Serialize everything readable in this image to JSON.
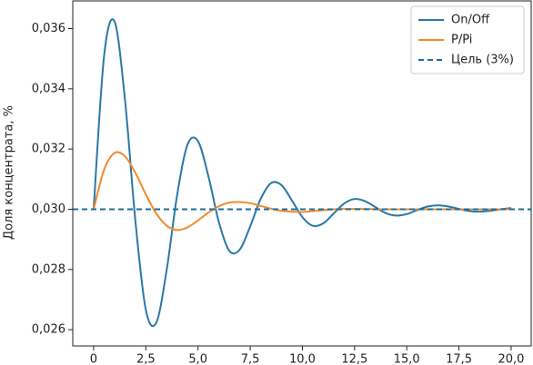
{
  "chart_data": {
    "type": "line",
    "y_label": "Доля концентрата, %",
    "x": [
      0,
      0.5,
      1,
      1.5,
      2,
      2.5,
      3,
      3.5,
      4,
      4.5,
      5,
      5.5,
      6,
      6.5,
      7,
      7.5,
      8,
      8.5,
      9,
      9.5,
      10,
      10.5,
      11,
      11.5,
      12,
      12.5,
      13,
      13.5,
      14,
      14.5,
      15,
      15.5,
      16,
      16.5,
      17,
      17.5,
      18,
      18.5,
      19,
      19.5,
      20
    ],
    "series": [
      {
        "name": "On/Off",
        "color": "#2a78a8",
        "values": [
          0.03,
          0.03509,
          0.03624,
          0.03365,
          0.02961,
          0.02666,
          0.02623,
          0.02799,
          0.03047,
          0.03215,
          0.03226,
          0.03109,
          0.02957,
          0.02862,
          0.02866,
          0.02943,
          0.03034,
          0.03087,
          0.0308,
          0.03029,
          0.02974,
          0.02945,
          0.02953,
          0.02986,
          0.03019,
          0.03034,
          0.03027,
          0.03007,
          0.02987,
          0.02979,
          0.02984,
          0.02997,
          0.03009,
          0.03013,
          0.03009,
          0.03001,
          0.02994,
          0.02992,
          0.02995,
          0.03,
          0.03004
        ]
      },
      {
        "name": "P/Pi",
        "color": "#f08a2c",
        "values": [
          0.03,
          0.03131,
          0.03187,
          0.03176,
          0.03121,
          0.03049,
          0.02986,
          0.02945,
          0.02931,
          0.0294,
          0.02963,
          0.02989,
          0.0301,
          0.03022,
          0.03024,
          0.0302,
          0.03011,
          0.03002,
          0.02995,
          0.02992,
          0.02991,
          0.02994,
          0.02997,
          0.03,
          0.03001,
          0.03001,
          0.03001,
          0.03,
          0.03,
          0.03,
          0.03,
          0.03,
          0.03,
          0.03,
          0.03,
          0.03,
          0.03,
          0.03,
          0.03,
          0.03,
          0.03
        ]
      },
      {
        "name": "Цель (3%)",
        "color": "#1d6e9c",
        "dashed": true,
        "hline": 0.03
      }
    ],
    "xlim": [
      -1,
      20.96
    ],
    "ylim": [
      0.02546,
      0.03692
    ],
    "xticks": [
      0,
      {
        "value": 2.5,
        "label": "2,5"
      },
      {
        "value": 5,
        "label": "5,0"
      },
      {
        "value": 7.5,
        "label": "7,5"
      },
      {
        "value": 10,
        "label": "10,0"
      },
      {
        "value": 12.5,
        "label": "12,5"
      },
      {
        "value": 15,
        "label": "15,0"
      },
      {
        "value": 17.5,
        "label": "17,5"
      },
      {
        "value": 20,
        "label": "20,0"
      }
    ],
    "yticks": [
      {
        "value": 0.026,
        "label": "0,026"
      },
      {
        "value": 0.028,
        "label": "0,028"
      },
      {
        "value": 0.03,
        "label": "0,030"
      },
      {
        "value": 0.032,
        "label": "0,032"
      },
      {
        "value": 0.034,
        "label": "0,034"
      },
      {
        "value": 0.036,
        "label": "0,036"
      }
    ],
    "legend": "upper right",
    "grid": false
  }
}
